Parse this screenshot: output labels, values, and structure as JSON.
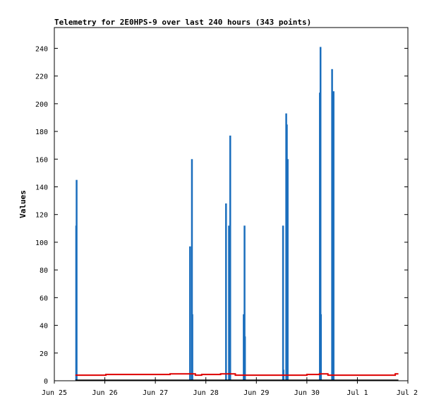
{
  "chart_data": {
    "type": "bar",
    "title": "Telemetry for 2E0HPS-9 over last 240 hours (343 points)",
    "xlabel": "",
    "ylabel": "Values",
    "ylim": [
      0,
      255
    ],
    "xlim": [
      0,
      168
    ],
    "x_unit": "hours since Jun 25 00:00",
    "y_ticks": [
      0,
      20,
      40,
      60,
      80,
      100,
      120,
      140,
      160,
      180,
      200,
      220,
      240
    ],
    "x_ticks": [
      {
        "x": 0,
        "label": "Jun 25"
      },
      {
        "x": 24,
        "label": "Jun 26"
      },
      {
        "x": 48,
        "label": "Jun 27"
      },
      {
        "x": 72,
        "label": "Jun 28"
      },
      {
        "x": 96,
        "label": "Jun 29"
      },
      {
        "x": 120,
        "label": "Jun 30"
      },
      {
        "x": 144,
        "label": "Jul 1"
      },
      {
        "x": 168,
        "label": "Jul 2"
      }
    ],
    "grid": false,
    "series": [
      {
        "color": "#1a6ebd",
        "style": "bars",
        "points": [
          {
            "x": 10.3,
            "y": 112
          },
          {
            "x": 10.5,
            "y": 145
          },
          {
            "x": 64.4,
            "y": 97
          },
          {
            "x": 65.3,
            "y": 160
          },
          {
            "x": 65.5,
            "y": 48
          },
          {
            "x": 81.5,
            "y": 128
          },
          {
            "x": 82.9,
            "y": 112
          },
          {
            "x": 83.5,
            "y": 177
          },
          {
            "x": 89.9,
            "y": 48
          },
          {
            "x": 90.3,
            "y": 112
          },
          {
            "x": 90.5,
            "y": 32
          },
          {
            "x": 108.6,
            "y": 112
          },
          {
            "x": 108.8,
            "y": 8
          },
          {
            "x": 110.1,
            "y": 193
          },
          {
            "x": 110.4,
            "y": 185
          },
          {
            "x": 110.8,
            "y": 160
          },
          {
            "x": 126.1,
            "y": 208
          },
          {
            "x": 126.4,
            "y": 241
          },
          {
            "x": 126.6,
            "y": 48
          },
          {
            "x": 131.9,
            "y": 225
          },
          {
            "x": 132.2,
            "y": 145
          },
          {
            "x": 132.6,
            "y": 209
          }
        ]
      },
      {
        "color": "#dd0000",
        "style": "step",
        "points": [
          {
            "x": 10.0,
            "y": 4
          },
          {
            "x": 24.5,
            "y": 4.5
          },
          {
            "x": 55.0,
            "y": 5
          },
          {
            "x": 67.0,
            "y": 4
          },
          {
            "x": 70.0,
            "y": 4.5
          },
          {
            "x": 79.0,
            "y": 5
          },
          {
            "x": 86.0,
            "y": 4
          },
          {
            "x": 91.0,
            "y": 4
          },
          {
            "x": 120.0,
            "y": 4.5
          },
          {
            "x": 126.0,
            "y": 5
          },
          {
            "x": 130.0,
            "y": 4
          },
          {
            "x": 133.0,
            "y": 4
          },
          {
            "x": 162.0,
            "y": 5
          },
          {
            "x": 163.5,
            "y": 5
          }
        ]
      },
      {
        "color": "#000000",
        "style": "line",
        "points": [
          {
            "x": 10.0,
            "y": 0.3
          },
          {
            "x": 163.5,
            "y": 0.3
          }
        ]
      }
    ]
  }
}
